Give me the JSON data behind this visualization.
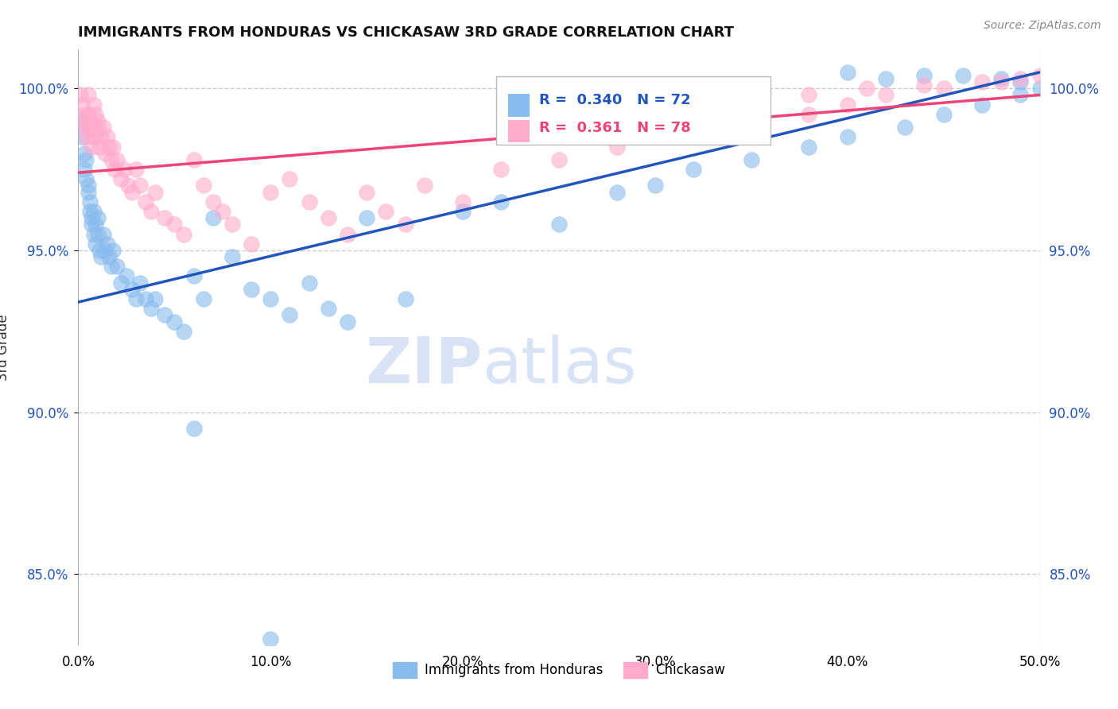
{
  "title": "IMMIGRANTS FROM HONDURAS VS CHICKASAW 3RD GRADE CORRELATION CHART",
  "source_text": "Source: ZipAtlas.com",
  "ylabel": "3rd Grade",
  "xmin": 0.0,
  "xmax": 0.5,
  "ymin": 0.828,
  "ymax": 1.012,
  "blue_R": 0.34,
  "blue_N": 72,
  "pink_R": 0.361,
  "pink_N": 78,
  "blue_color": "#88BBEE",
  "pink_color": "#FFAACC",
  "blue_line_color": "#2255BB",
  "pink_line_color": "#EE4477",
  "watermark_color": "#D8E4F5",
  "legend_label_blue": "Immigrants from Honduras",
  "legend_label_pink": "Chickasaw",
  "yticks": [
    0.85,
    0.9,
    0.95,
    1.0
  ],
  "ytick_labels": [
    "85.0%",
    "90.0%",
    "95.0%",
    "100.0%"
  ],
  "xticks": [
    0.0,
    0.1,
    0.2,
    0.3,
    0.4,
    0.5
  ],
  "xtick_labels": [
    "0.0%",
    "10.0%",
    "20.0%",
    "30.0%",
    "40.0%",
    "50.0%"
  ],
  "blue_x": [
    0.001,
    0.002,
    0.003,
    0.003,
    0.004,
    0.004,
    0.005,
    0.005,
    0.006,
    0.006,
    0.007,
    0.007,
    0.008,
    0.008,
    0.009,
    0.009,
    0.01,
    0.01,
    0.011,
    0.012,
    0.013,
    0.014,
    0.015,
    0.016,
    0.017,
    0.018,
    0.02,
    0.022,
    0.025,
    0.028,
    0.03,
    0.032,
    0.035,
    0.038,
    0.04,
    0.045,
    0.05,
    0.055,
    0.06,
    0.065,
    0.07,
    0.08,
    0.09,
    0.1,
    0.11,
    0.12,
    0.13,
    0.14,
    0.15,
    0.17,
    0.2,
    0.22,
    0.25,
    0.28,
    0.3,
    0.32,
    0.35,
    0.38,
    0.4,
    0.43,
    0.45,
    0.47,
    0.49,
    0.5,
    0.49,
    0.48,
    0.46,
    0.44,
    0.42,
    0.4,
    0.06,
    0.1
  ],
  "blue_y": [
    0.99,
    0.985,
    0.98,
    0.975,
    0.978,
    0.972,
    0.97,
    0.968,
    0.965,
    0.962,
    0.96,
    0.958,
    0.962,
    0.955,
    0.958,
    0.952,
    0.96,
    0.955,
    0.95,
    0.948,
    0.955,
    0.95,
    0.952,
    0.948,
    0.945,
    0.95,
    0.945,
    0.94,
    0.942,
    0.938,
    0.935,
    0.94,
    0.935,
    0.932,
    0.935,
    0.93,
    0.928,
    0.925,
    0.942,
    0.935,
    0.96,
    0.948,
    0.938,
    0.935,
    0.93,
    0.94,
    0.932,
    0.928,
    0.96,
    0.935,
    0.962,
    0.965,
    0.958,
    0.968,
    0.97,
    0.975,
    0.978,
    0.982,
    0.985,
    0.988,
    0.992,
    0.995,
    0.998,
    1.0,
    1.002,
    1.003,
    1.004,
    1.004,
    1.003,
    1.005,
    0.895,
    0.83
  ],
  "pink_x": [
    0.001,
    0.002,
    0.003,
    0.003,
    0.004,
    0.004,
    0.005,
    0.005,
    0.006,
    0.006,
    0.007,
    0.007,
    0.008,
    0.008,
    0.009,
    0.009,
    0.01,
    0.01,
    0.011,
    0.012,
    0.013,
    0.014,
    0.015,
    0.016,
    0.017,
    0.018,
    0.019,
    0.02,
    0.022,
    0.024,
    0.026,
    0.028,
    0.03,
    0.032,
    0.035,
    0.038,
    0.04,
    0.045,
    0.05,
    0.055,
    0.06,
    0.065,
    0.07,
    0.075,
    0.08,
    0.09,
    0.1,
    0.11,
    0.12,
    0.13,
    0.14,
    0.15,
    0.16,
    0.17,
    0.18,
    0.2,
    0.22,
    0.25,
    0.28,
    0.3,
    0.32,
    0.35,
    0.38,
    0.4,
    0.42,
    0.45,
    0.48,
    0.5,
    0.49,
    0.47,
    0.44,
    0.41,
    0.38,
    0.35,
    0.32,
    0.3,
    0.28,
    0.25
  ],
  "pink_y": [
    0.998,
    0.995,
    0.992,
    0.99,
    0.988,
    0.985,
    0.998,
    0.992,
    0.99,
    0.988,
    0.985,
    0.982,
    0.995,
    0.988,
    0.992,
    0.985,
    0.99,
    0.988,
    0.982,
    0.985,
    0.988,
    0.98,
    0.985,
    0.982,
    0.978,
    0.982,
    0.975,
    0.978,
    0.972,
    0.975,
    0.97,
    0.968,
    0.975,
    0.97,
    0.965,
    0.962,
    0.968,
    0.96,
    0.958,
    0.955,
    0.978,
    0.97,
    0.965,
    0.962,
    0.958,
    0.952,
    0.968,
    0.972,
    0.965,
    0.96,
    0.955,
    0.968,
    0.962,
    0.958,
    0.97,
    0.965,
    0.975,
    0.978,
    0.982,
    0.985,
    0.988,
    0.99,
    0.992,
    0.995,
    0.998,
    1.0,
    1.002,
    1.004,
    1.003,
    1.002,
    1.001,
    1.0,
    0.998,
    0.995,
    0.992,
    0.99,
    0.988,
    0.985
  ]
}
